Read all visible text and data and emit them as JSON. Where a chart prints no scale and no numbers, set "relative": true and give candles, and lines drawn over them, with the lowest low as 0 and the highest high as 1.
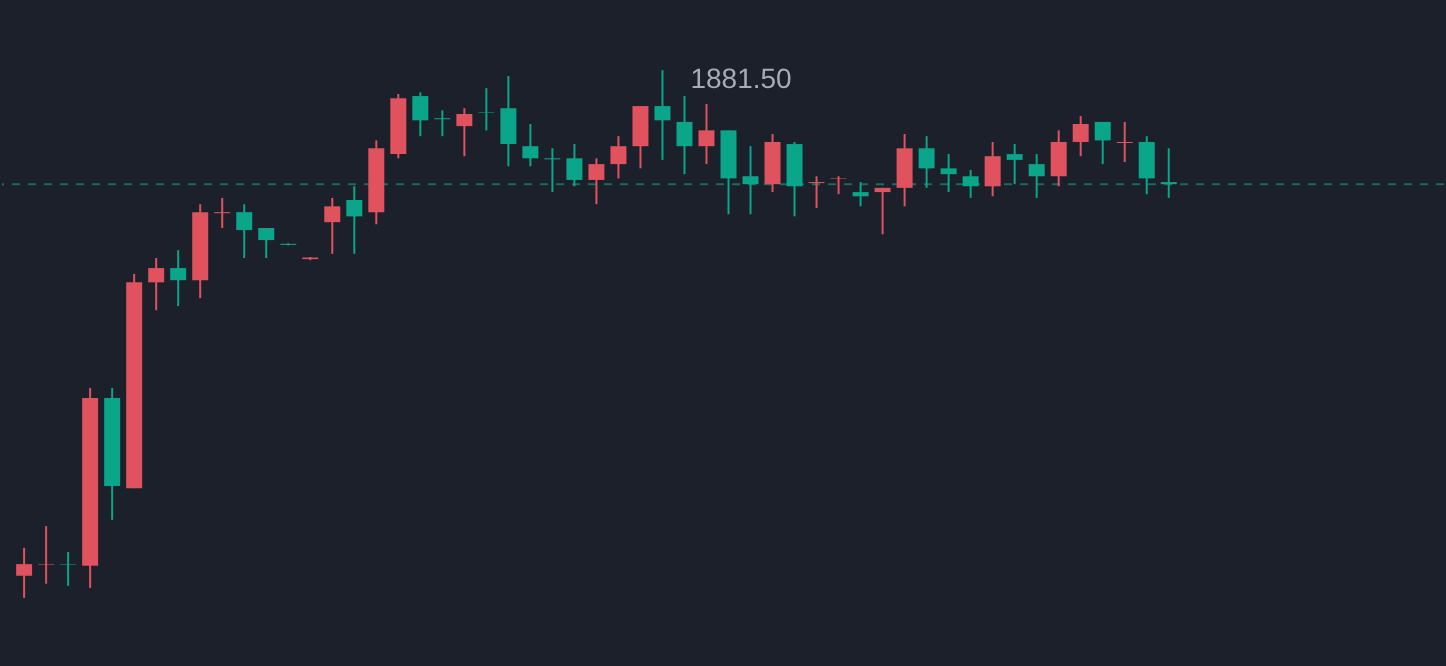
{
  "chart_data": {
    "type": "candlestick",
    "relative": true,
    "categories": [
      null,
      null,
      null,
      null,
      null,
      null,
      null,
      null,
      null,
      null,
      null,
      null,
      null,
      null,
      null,
      null,
      null,
      null,
      null,
      null,
      null,
      null,
      null,
      null,
      null,
      null,
      null,
      null,
      null,
      null,
      null,
      null,
      null,
      null,
      null,
      null,
      null,
      null,
      null,
      null,
      null,
      null,
      null,
      null,
      null,
      null,
      null,
      null,
      null,
      null,
      null,
      null,
      null
    ],
    "ohlc": [
      [
        0.042,
        0.095,
        0,
        0.064
      ],
      [
        0.063,
        0.136,
        0.027,
        0.064
      ],
      [
        0.064,
        0.087,
        0.023,
        0.063
      ],
      [
        0.061,
        0.398,
        0.019,
        0.379
      ],
      [
        0.379,
        0.398,
        0.148,
        0.212
      ],
      [
        0.208,
        0.614,
        0.208,
        0.598
      ],
      [
        0.598,
        0.644,
        0.545,
        0.625
      ],
      [
        0.625,
        0.659,
        0.553,
        0.602
      ],
      [
        0.602,
        0.746,
        0.568,
        0.731
      ],
      [
        0.729,
        0.758,
        0.701,
        0.731
      ],
      [
        0.731,
        0.746,
        0.644,
        0.697
      ],
      [
        0.701,
        0.701,
        0.644,
        0.678
      ],
      [
        0.671,
        0.672,
        0.668,
        0.669
      ],
      [
        0.642,
        0.646,
        0.64,
        0.645
      ],
      [
        0.712,
        0.758,
        0.652,
        0.742
      ],
      [
        0.754,
        0.78,
        0.652,
        0.723
      ],
      [
        0.731,
        0.867,
        0.708,
        0.852
      ],
      [
        0.841,
        0.955,
        0.833,
        0.947
      ],
      [
        0.951,
        0.958,
        0.875,
        0.905
      ],
      [
        0.909,
        0.924,
        0.875,
        0.907
      ],
      [
        0.894,
        0.928,
        0.837,
        0.917
      ],
      [
        0.92,
        0.966,
        0.886,
        0.919
      ],
      [
        0.928,
        0.989,
        0.818,
        0.86
      ],
      [
        0.856,
        0.898,
        0.818,
        0.833
      ],
      [
        0.833,
        0.852,
        0.769,
        0.831
      ],
      [
        0.833,
        0.86,
        0.78,
        0.792
      ],
      [
        0.792,
        0.833,
        0.746,
        0.822
      ],
      [
        0.822,
        0.875,
        0.795,
        0.856
      ],
      [
        0.856,
        0.932,
        0.814,
        0.932
      ],
      [
        0.932,
        1,
        0.83,
        0.905
      ],
      [
        0.902,
        0.951,
        0.803,
        0.856
      ],
      [
        0.856,
        0.936,
        0.822,
        0.886
      ],
      [
        0.886,
        0.886,
        0.727,
        0.795
      ],
      [
        0.799,
        0.856,
        0.727,
        0.784
      ],
      [
        0.784,
        0.879,
        0.769,
        0.864
      ],
      [
        0.86,
        0.864,
        0.723,
        0.78
      ],
      [
        0.786,
        0.799,
        0.739,
        0.788
      ],
      [
        0.794,
        0.799,
        0.765,
        0.795
      ],
      [
        0.769,
        0.788,
        0.742,
        0.761
      ],
      [
        0.769,
        0.777,
        0.689,
        0.777
      ],
      [
        0.777,
        0.879,
        0.742,
        0.852
      ],
      [
        0.852,
        0.875,
        0.777,
        0.814
      ],
      [
        0.814,
        0.841,
        0.769,
        0.803
      ],
      [
        0.799,
        0.811,
        0.758,
        0.78
      ],
      [
        0.78,
        0.864,
        0.761,
        0.837
      ],
      [
        0.841,
        0.86,
        0.784,
        0.83
      ],
      [
        0.822,
        0.841,
        0.758,
        0.799
      ],
      [
        0.799,
        0.886,
        0.78,
        0.864
      ],
      [
        0.864,
        0.913,
        0.837,
        0.898
      ],
      [
        0.902,
        0.902,
        0.822,
        0.867
      ],
      [
        0.862,
        0.902,
        0.826,
        0.864
      ],
      [
        0.864,
        0.875,
        0.765,
        0.795
      ],
      [
        0.788,
        0.852,
        0.758,
        0.784
      ]
    ],
    "colors": [
      "#e0525e",
      "#e0525e",
      "#0ba58a",
      "#e0525e",
      "#0ba58a",
      "#e0525e",
      "#e0525e",
      "#0ba58a",
      "#e0525e",
      "#e0525e",
      "#0ba58a",
      "#0ba58a",
      "#0ba58a",
      "#e0525e",
      "#e0525e",
      "#0ba58a",
      "#e0525e",
      "#e0525e",
      "#0ba58a",
      "#0ba58a",
      "#e0525e",
      "#0ba58a",
      "#0ba58a",
      "#0ba58a",
      "#0ba58a",
      "#0ba58a",
      "#e0525e",
      "#e0525e",
      "#e0525e",
      "#0ba58a",
      "#0ba58a",
      "#e0525e",
      "#0ba58a",
      "#0ba58a",
      "#e0525e",
      "#0ba58a",
      "#e0525e",
      "#e0525e",
      "#0ba58a",
      "#e0525e",
      "#e0525e",
      "#0ba58a",
      "#0ba58a",
      "#0ba58a",
      "#e0525e",
      "#0ba58a",
      "#0ba58a",
      "#e0525e",
      "#e0525e",
      "#0ba58a",
      "#e0525e",
      "#0ba58a",
      "#0ba58a"
    ],
    "ref_lines": [
      {
        "axis": "y",
        "value": 0.784,
        "color": "#1d6b60",
        "line_style": "dashed"
      }
    ],
    "annotations": [
      "1881.50"
    ]
  }
}
